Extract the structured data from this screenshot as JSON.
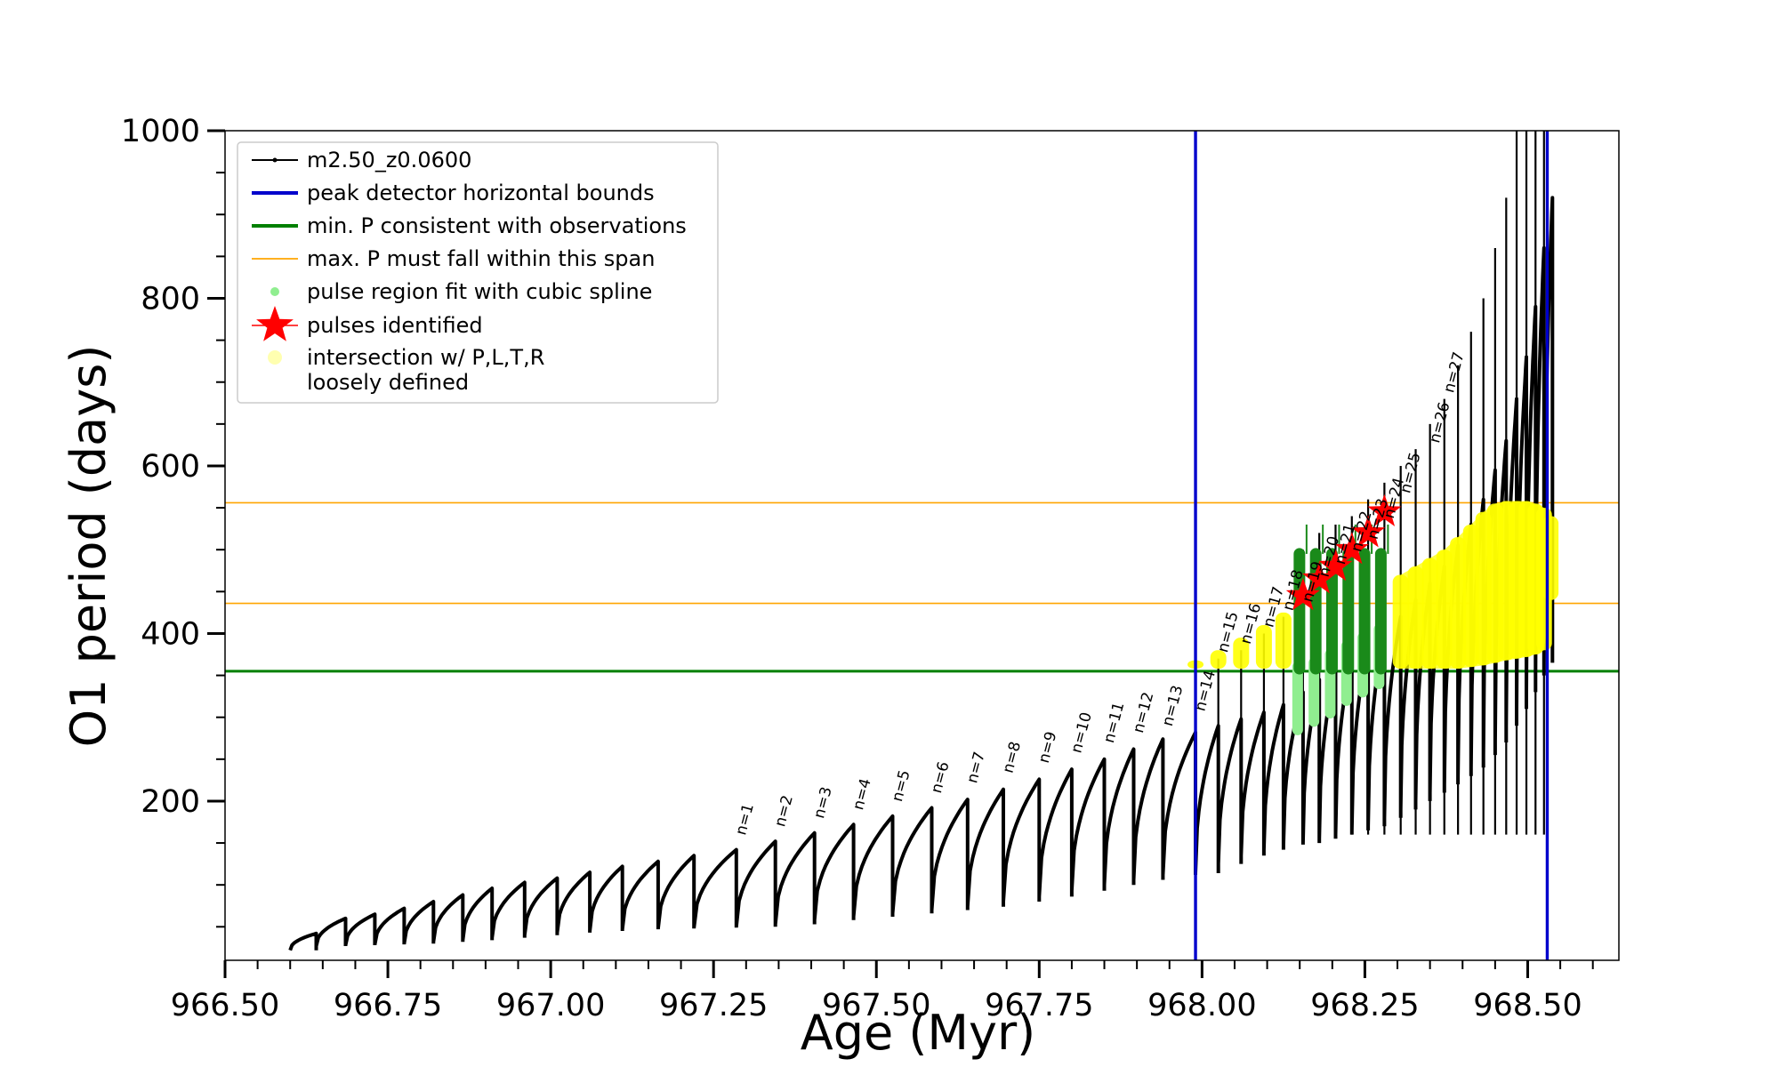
{
  "chart_data": {
    "type": "line",
    "title": "",
    "xlabel": "Age (Myr)",
    "ylabel": "O1 period (days)",
    "xlim": [
      966.5,
      968.64
    ],
    "ylim": [
      10,
      1000
    ],
    "xticks": [
      966.5,
      966.75,
      967.0,
      967.25,
      967.5,
      967.75,
      968.0,
      968.25,
      968.5
    ],
    "xtick_labels": [
      "966.50",
      "966.75",
      "967.00",
      "967.25",
      "967.50",
      "967.75",
      "968.00",
      "968.25",
      "968.50"
    ],
    "xtick_minor_step": 0.05,
    "yticks": [
      200,
      400,
      600,
      800,
      1000
    ],
    "ytick_labels": [
      "200",
      "400",
      "600",
      "800",
      "1000"
    ],
    "ytick_minor_step": 50,
    "grid": false,
    "legend_position": "upper-left",
    "colors": {
      "track": "#000000",
      "bounds": "#0000cc",
      "min_p": "#008000",
      "max_p": "#ffa500",
      "spline": "#90ee90",
      "pulse_star": "#ff0000",
      "intersection": "#ffff00",
      "intersection_legend": "#ffffb0",
      "thick_green": "#1a8a1a"
    },
    "legend": [
      {
        "label": "m2.50_z0.0600",
        "kind": "line-dot",
        "color": "#000000"
      },
      {
        "label": "peak detector horizontal bounds",
        "kind": "line",
        "color": "#0000cc"
      },
      {
        "label": "min. P consistent with observations",
        "kind": "line",
        "color": "#008000"
      },
      {
        "label": "max. P must fall within this span",
        "kind": "thin-line",
        "color": "#ffa500"
      },
      {
        "label": "pulse region fit with cubic spline",
        "kind": "dot",
        "color": "#90ee90"
      },
      {
        "label": "pulses identified",
        "kind": "star",
        "color": "#ff0000"
      },
      {
        "label": "intersection w/ P,L,T,R",
        "label2": "loosely defined",
        "kind": "dot",
        "color": "#ffffb0"
      }
    ],
    "vertical_bounds": [
      967.99,
      968.53
    ],
    "min_period": 355,
    "max_period_span": [
      436,
      556
    ],
    "pulses": {
      "age": [
        966.6,
        966.64,
        966.685,
        966.73,
        966.775,
        966.82,
        966.865,
        966.91,
        966.96,
        967.01,
        967.06,
        967.11,
        967.165,
        967.22,
        967.285,
        967.345,
        967.405,
        967.465,
        967.525,
        967.585,
        967.64,
        967.695,
        967.75,
        967.8,
        967.85,
        967.895,
        967.94,
        967.99,
        968.025,
        968.06,
        968.095,
        968.125,
        968.155,
        968.18,
        968.205,
        968.23,
        968.255,
        968.28,
        968.305,
        968.328,
        968.35,
        968.372,
        968.393,
        968.413,
        968.432,
        968.45,
        968.467,
        968.483,
        968.498,
        968.512,
        968.525
      ],
      "peak_period": [
        42,
        60,
        65,
        72,
        80,
        88,
        96,
        103,
        108,
        115,
        122,
        128,
        135,
        142,
        152,
        162,
        172,
        182,
        192,
        202,
        214,
        226,
        238,
        250,
        262,
        274,
        282,
        290,
        298,
        306,
        315,
        330,
        345,
        360,
        375,
        390,
        405,
        420,
        440,
        460,
        480,
        505,
        530,
        560,
        595,
        630,
        680,
        730,
        790,
        860,
        920
      ],
      "min_period": [
        22,
        27,
        28,
        29,
        30,
        32,
        34,
        37,
        40,
        43,
        45,
        47,
        48,
        49,
        50,
        53,
        58,
        62,
        66,
        70,
        74,
        80,
        86,
        93,
        100,
        106,
        112,
        114,
        125,
        135,
        142,
        148,
        150,
        155,
        160,
        165,
        170,
        180,
        190,
        200,
        210,
        220,
        230,
        240,
        255,
        270,
        290,
        310,
        330,
        350,
        365
      ],
      "spikes": [
        {
          "age": 967.99,
          "top": 300
        },
        {
          "age": 968.025,
          "top": 370
        },
        {
          "age": 968.06,
          "top": 380
        },
        {
          "age": 968.095,
          "top": 400
        },
        {
          "age": 968.125,
          "top": 420
        },
        {
          "age": 968.155,
          "top": 500
        },
        {
          "age": 968.18,
          "top": 520
        },
        {
          "age": 968.205,
          "top": 530
        },
        {
          "age": 968.23,
          "top": 540
        },
        {
          "age": 968.255,
          "top": 560
        },
        {
          "age": 968.28,
          "top": 580
        },
        {
          "age": 968.305,
          "top": 600
        },
        {
          "age": 968.328,
          "top": 620
        },
        {
          "age": 968.35,
          "top": 650
        },
        {
          "age": 968.372,
          "top": 680
        },
        {
          "age": 968.393,
          "top": 720
        },
        {
          "age": 968.413,
          "top": 760
        },
        {
          "age": 968.432,
          "top": 800
        },
        {
          "age": 968.45,
          "top": 860
        },
        {
          "age": 968.467,
          "top": 920
        },
        {
          "age": 968.483,
          "top": 1000
        },
        {
          "age": 968.498,
          "top": 1000
        },
        {
          "age": 968.512,
          "top": 1000
        },
        {
          "age": 968.525,
          "top": 1000
        }
      ]
    },
    "pulse_labels": [
      {
        "text": "n=1",
        "age": 967.285,
        "period": 152
      },
      {
        "text": "n=2",
        "age": 967.345,
        "period": 162
      },
      {
        "text": "n=3",
        "age": 967.405,
        "period": 172
      },
      {
        "text": "n=4",
        "age": 967.465,
        "period": 182
      },
      {
        "text": "n=5",
        "age": 967.525,
        "period": 192
      },
      {
        "text": "n=6",
        "age": 967.585,
        "period": 202
      },
      {
        "text": "n=7",
        "age": 967.64,
        "period": 214
      },
      {
        "text": "n=8",
        "age": 967.695,
        "period": 226
      },
      {
        "text": "n=9",
        "age": 967.75,
        "period": 238
      },
      {
        "text": "n=10",
        "age": 967.8,
        "period": 250
      },
      {
        "text": "n=11",
        "age": 967.85,
        "period": 262
      },
      {
        "text": "n=12",
        "age": 967.895,
        "period": 274
      },
      {
        "text": "n=13",
        "age": 967.94,
        "period": 282
      },
      {
        "text": "n=14",
        "age": 967.99,
        "period": 300
      },
      {
        "text": "n=15",
        "age": 968.025,
        "period": 370
      },
      {
        "text": "n=16",
        "age": 968.06,
        "period": 380
      },
      {
        "text": "n=17",
        "age": 968.095,
        "period": 400
      },
      {
        "text": "n=18",
        "age": 968.125,
        "period": 420
      },
      {
        "text": "n=19",
        "age": 968.155,
        "period": 430
      },
      {
        "text": "n=20",
        "age": 968.18,
        "period": 460
      },
      {
        "text": "n=21",
        "age": 968.205,
        "period": 475
      },
      {
        "text": "n=22",
        "age": 968.23,
        "period": 490
      },
      {
        "text": "n=23",
        "age": 968.255,
        "period": 505
      },
      {
        "text": "n=24",
        "age": 968.28,
        "period": 530
      },
      {
        "text": "n=25",
        "age": 968.305,
        "period": 560
      },
      {
        "text": "n=26",
        "age": 968.35,
        "period": 620
      },
      {
        "text": "n=27",
        "age": 968.372,
        "period": 680
      }
    ],
    "pulses_identified": [
      {
        "age": 968.155,
        "period": 445
      },
      {
        "age": 968.18,
        "period": 465
      },
      {
        "age": 968.205,
        "period": 480
      },
      {
        "age": 968.23,
        "period": 500
      },
      {
        "age": 968.255,
        "period": 520
      },
      {
        "age": 968.28,
        "period": 545
      }
    ],
    "spline_regions": [
      {
        "age": 968.155,
        "low": 285,
        "high": 360
      },
      {
        "age": 968.18,
        "low": 295,
        "high": 365
      },
      {
        "age": 968.205,
        "low": 305,
        "high": 375
      },
      {
        "age": 968.23,
        "low": 320,
        "high": 385
      },
      {
        "age": 968.255,
        "low": 330,
        "high": 395
      },
      {
        "age": 968.28,
        "low": 340,
        "high": 405
      }
    ],
    "green_bars": [
      {
        "age": 968.155,
        "low": 358,
        "high": 495
      },
      {
        "age": 968.18,
        "low": 358,
        "high": 495
      },
      {
        "age": 968.205,
        "low": 358,
        "high": 495
      },
      {
        "age": 968.23,
        "low": 358,
        "high": 495
      },
      {
        "age": 968.255,
        "low": 358,
        "high": 495
      },
      {
        "age": 968.28,
        "low": 358,
        "high": 495
      }
    ],
    "intersection_regions": [
      {
        "age": 967.99,
        "low": 358,
        "high": 368
      },
      {
        "age": 968.025,
        "low": 358,
        "high": 380
      },
      {
        "age": 968.06,
        "low": 358,
        "high": 395
      },
      {
        "age": 968.095,
        "low": 358,
        "high": 410
      },
      {
        "age": 968.125,
        "low": 358,
        "high": 425
      },
      {
        "age": 968.305,
        "low": 358,
        "high": 470
      },
      {
        "age": 968.328,
        "low": 358,
        "high": 480
      },
      {
        "age": 968.35,
        "low": 358,
        "high": 490
      },
      {
        "age": 968.372,
        "low": 358,
        "high": 500
      },
      {
        "age": 968.393,
        "low": 358,
        "high": 515
      },
      {
        "age": 968.413,
        "low": 360,
        "high": 530
      },
      {
        "age": 968.432,
        "low": 362,
        "high": 545
      },
      {
        "age": 968.45,
        "low": 365,
        "high": 555
      },
      {
        "age": 968.467,
        "low": 368,
        "high": 558
      },
      {
        "age": 968.483,
        "low": 370,
        "high": 558
      },
      {
        "age": 968.498,
        "low": 372,
        "high": 558
      },
      {
        "age": 968.512,
        "low": 375,
        "high": 555
      },
      {
        "age": 968.525,
        "low": 380,
        "high": 550
      },
      {
        "age": 968.535,
        "low": 440,
        "high": 540
      }
    ]
  }
}
